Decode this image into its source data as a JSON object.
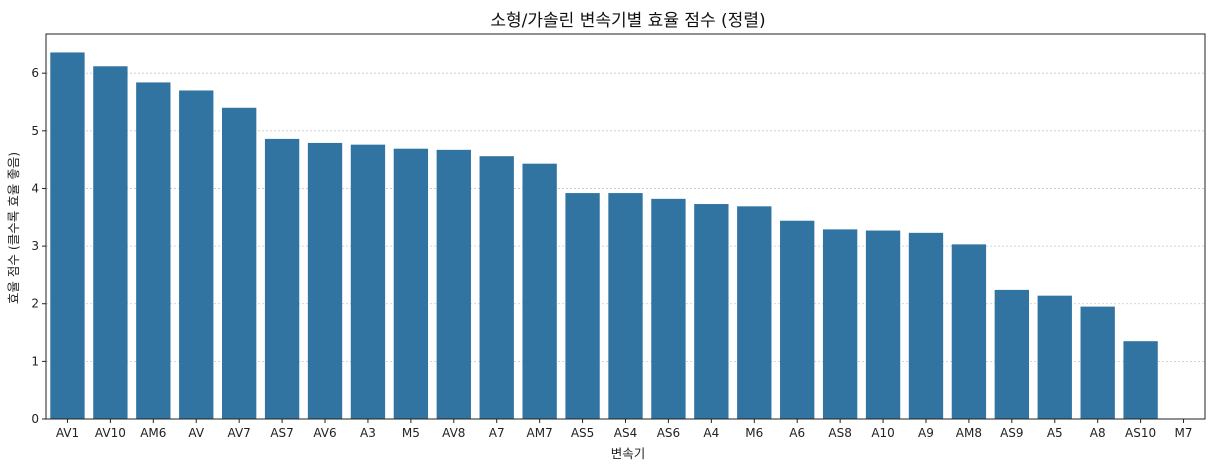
{
  "chart_data": {
    "type": "bar",
    "title": "소형/가솔린 변속기별 효율 점수 (정렬)",
    "xlabel": "변속기",
    "ylabel": "효율 점수 (클수록 효율 좋음)",
    "categories": [
      "AV1",
      "AV10",
      "AM6",
      "AV",
      "AV7",
      "AS7",
      "AV6",
      "A3",
      "M5",
      "AV8",
      "A7",
      "AM7",
      "AS5",
      "AS4",
      "AS6",
      "A4",
      "M6",
      "A6",
      "AS8",
      "A10",
      "A9",
      "AM8",
      "AS9",
      "A5",
      "A8",
      "AS10",
      "M7"
    ],
    "values": [
      6.36,
      6.12,
      5.84,
      5.7,
      5.4,
      4.86,
      4.79,
      4.76,
      4.69,
      4.67,
      4.56,
      4.43,
      3.92,
      3.92,
      3.82,
      3.73,
      3.69,
      3.44,
      3.29,
      3.27,
      3.23,
      3.03,
      2.24,
      2.14,
      1.95,
      1.35,
      0.0
    ],
    "ylim": [
      0,
      6.68
    ],
    "yticks": [
      0,
      1,
      2,
      3,
      4,
      5,
      6
    ],
    "grid": "y, dotted",
    "legend": "none",
    "bar_color": "#3274a1"
  }
}
